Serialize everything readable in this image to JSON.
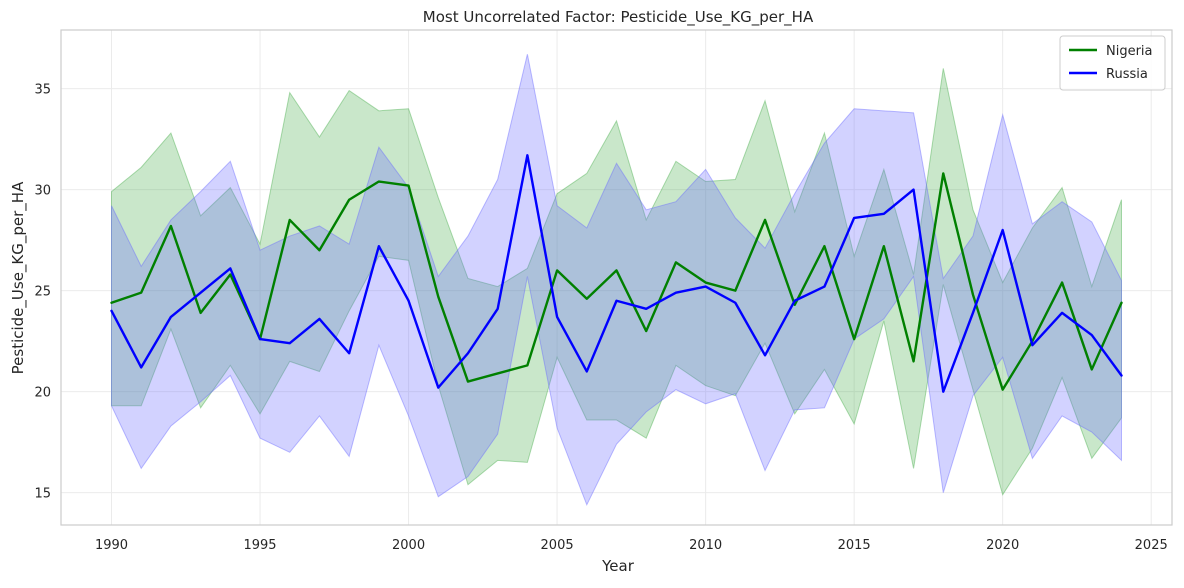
{
  "chart_data": {
    "type": "line",
    "title": "Most Uncorrelated Factor: Pesticide_Use_KG_per_HA",
    "xlabel": "Year",
    "ylabel": "Pesticide_Use_KG_per_HA",
    "xlim": [
      1988.3,
      2025.7
    ],
    "ylim": [
      13.4,
      37.9
    ],
    "x_ticks": [
      1990,
      1995,
      2000,
      2005,
      2010,
      2015,
      2020,
      2025
    ],
    "y_ticks": [
      15,
      20,
      25,
      30,
      35
    ],
    "grid": true,
    "legend_position": "top-right",
    "x": [
      1990,
      1991,
      1992,
      1993,
      1994,
      1995,
      1996,
      1997,
      1998,
      1999,
      2000,
      2001,
      2002,
      2003,
      2004,
      2005,
      2006,
      2007,
      2008,
      2009,
      2010,
      2011,
      2012,
      2013,
      2014,
      2015,
      2016,
      2017,
      2018,
      2019,
      2020,
      2021,
      2022,
      2023,
      2024
    ],
    "series": [
      {
        "name": "Nigeria",
        "color": "#008000",
        "band_color": "#4caf50",
        "values": [
          24.4,
          24.9,
          28.2,
          23.9,
          25.8,
          22.6,
          28.5,
          27.0,
          29.5,
          30.4,
          30.2,
          24.7,
          20.5,
          20.9,
          21.3,
          26.0,
          24.6,
          26.0,
          23.0,
          26.4,
          25.4,
          25.0,
          28.5,
          24.3,
          27.2,
          22.6,
          27.2,
          21.5,
          30.8,
          24.8,
          20.1,
          22.5,
          25.4,
          21.1,
          24.4
        ],
        "upper": [
          29.9,
          31.1,
          32.8,
          28.7,
          30.1,
          27.3,
          34.8,
          32.6,
          34.9,
          33.9,
          34.0,
          29.6,
          25.6,
          25.2,
          26.1,
          29.8,
          30.8,
          33.4,
          28.5,
          31.4,
          30.4,
          30.5,
          34.4,
          28.9,
          32.8,
          26.7,
          31.0,
          25.8,
          36.0,
          29.0,
          25.4,
          28.1,
          30.1,
          25.2,
          29.5
        ],
        "lower": [
          19.3,
          19.3,
          23.1,
          19.2,
          21.3,
          18.9,
          21.5,
          21.0,
          24.0,
          26.7,
          26.5,
          20.3,
          15.4,
          16.6,
          16.5,
          21.7,
          18.6,
          18.6,
          17.7,
          21.3,
          20.3,
          19.8,
          22.4,
          18.9,
          21.1,
          18.4,
          23.5,
          16.2,
          25.3,
          20.1,
          14.9,
          17.2,
          20.7,
          16.7,
          18.7
        ]
      },
      {
        "name": "Russia",
        "color": "#0000ff",
        "band_color": "#6a6aff",
        "values": [
          24.0,
          21.2,
          23.7,
          24.9,
          26.1,
          22.6,
          22.4,
          23.6,
          21.9,
          27.2,
          24.5,
          20.2,
          21.9,
          24.1,
          31.7,
          23.7,
          21.0,
          24.5,
          24.1,
          24.9,
          25.2,
          24.4,
          21.8,
          24.5,
          25.2,
          28.6,
          28.8,
          30.0,
          20.0,
          23.9,
          28.0,
          22.3,
          23.9,
          22.8,
          20.8
        ],
        "upper": [
          29.2,
          26.2,
          28.5,
          29.9,
          31.4,
          27.0,
          27.7,
          28.2,
          27.3,
          32.1,
          30.1,
          25.7,
          27.7,
          30.5,
          36.7,
          29.2,
          28.1,
          31.3,
          29.0,
          29.4,
          31.0,
          28.6,
          27.1,
          29.8,
          32.3,
          34.0,
          33.9,
          33.8,
          25.6,
          27.7,
          33.7,
          28.3,
          29.4,
          28.4,
          25.5
        ],
        "lower": [
          19.3,
          16.2,
          18.3,
          19.5,
          20.8,
          17.7,
          17.0,
          18.8,
          16.8,
          22.3,
          18.8,
          14.8,
          15.8,
          17.9,
          25.7,
          18.2,
          14.4,
          17.4,
          19.0,
          20.1,
          19.4,
          19.9,
          16.1,
          19.1,
          19.2,
          22.6,
          23.6,
          25.7,
          15.0,
          19.8,
          21.7,
          16.7,
          18.8,
          18.0,
          16.6
        ]
      }
    ]
  }
}
